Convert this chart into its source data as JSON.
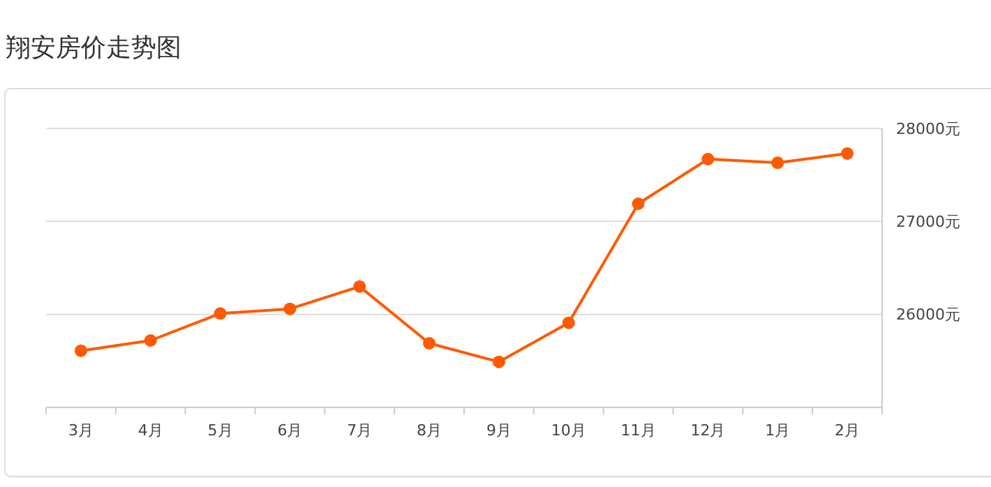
{
  "chart_data": {
    "type": "line",
    "title": "翔安房价走势图",
    "categories": [
      "3月",
      "4月",
      "5月",
      "6月",
      "7月",
      "8月",
      "9月",
      "10月",
      "11月",
      "12月",
      "1月",
      "2月"
    ],
    "series": [
      {
        "color": "#ff5a00",
        "values": [
          25610,
          25720,
          26010,
          26060,
          26300,
          25690,
          25490,
          25910,
          27190,
          27670,
          27630,
          27730
        ]
      }
    ],
    "ylim": [
      25000,
      28000
    ],
    "yticks": [
      {
        "value": 26000,
        "label": "26000元"
      },
      {
        "value": 27000,
        "label": "27000元"
      },
      {
        "value": 28000,
        "label": "28000元"
      }
    ],
    "grid": "y",
    "marker": "circle",
    "line_style": "solid"
  }
}
